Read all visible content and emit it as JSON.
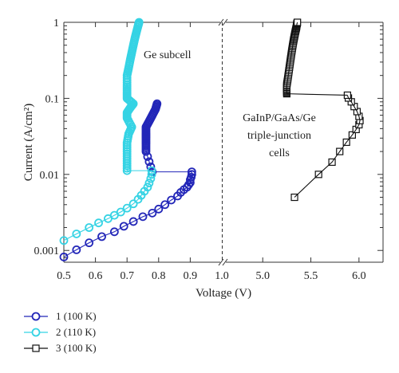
{
  "chart_data": {
    "type": "scatter",
    "ylabel": "Current (A/cm²)",
    "xlabel": "Voltage (V)",
    "y_scale": "log",
    "ylim": [
      0.0007,
      1
    ],
    "y_ticks": [
      "0.001",
      "0.01",
      "0.1",
      "1"
    ],
    "grid": false,
    "legend_position": "bottom-left",
    "panels": [
      {
        "xlim": [
          0.5,
          1.0
        ],
        "x_ticks": [
          "0.5",
          "0.6",
          "0.7",
          "0.8",
          "0.9",
          "1.0"
        ],
        "annotation": "Ge subcell"
      },
      {
        "xlim": [
          4.6,
          6.25
        ],
        "x_ticks": [
          "5.0",
          "5.5",
          "6.0"
        ],
        "annotation": [
          "GaInP/GaAs/Ge",
          "triple-junction",
          "cells"
        ]
      }
    ],
    "series": [
      {
        "name": "1 (100 K)",
        "panel": 0,
        "color": "#2226b8",
        "marker": "circle-open",
        "points": [
          [
            0.5,
            0.00082
          ],
          [
            0.54,
            0.00102
          ],
          [
            0.58,
            0.00126
          ],
          [
            0.62,
            0.00152
          ],
          [
            0.66,
            0.00176
          ],
          [
            0.69,
            0.00208
          ],
          [
            0.72,
            0.0024
          ],
          [
            0.75,
            0.00278
          ],
          [
            0.78,
            0.0031
          ],
          [
            0.8,
            0.0035
          ],
          [
            0.82,
            0.004
          ],
          [
            0.84,
            0.0046
          ],
          [
            0.86,
            0.0052
          ],
          [
            0.87,
            0.0058
          ],
          [
            0.88,
            0.0063
          ],
          [
            0.89,
            0.0068
          ],
          [
            0.895,
            0.0073
          ],
          [
            0.9,
            0.0078
          ],
          [
            0.9,
            0.0085
          ],
          [
            0.903,
            0.0092
          ],
          [
            0.905,
            0.01
          ],
          [
            0.905,
            0.0108
          ]
        ],
        "branch": {
          "start": [
            0.78,
            0.0108
          ],
          "upper": [
            [
              0.76,
              0.02
            ],
            [
              0.76,
              0.025
            ],
            [
              0.76,
              0.03
            ],
            [
              0.76,
              0.035
            ],
            [
              0.76,
              0.042
            ],
            [
              0.77,
              0.05
            ],
            [
              0.78,
              0.06
            ],
            [
              0.79,
              0.072
            ],
            [
              0.795,
              0.085
            ]
          ]
        }
      },
      {
        "name": "2 (110 K)",
        "panel": 0,
        "color": "#35d3e4",
        "marker": "circle-open",
        "points": [
          [
            0.5,
            0.00135
          ],
          [
            0.54,
            0.00165
          ],
          [
            0.58,
            0.002
          ],
          [
            0.61,
            0.0023
          ],
          [
            0.64,
            0.00262
          ],
          [
            0.66,
            0.0029
          ],
          [
            0.68,
            0.0032
          ],
          [
            0.7,
            0.0036
          ],
          [
            0.72,
            0.0041
          ],
          [
            0.735,
            0.0047
          ],
          [
            0.745,
            0.0053
          ],
          [
            0.755,
            0.006
          ],
          [
            0.765,
            0.0068
          ],
          [
            0.77,
            0.0077
          ],
          [
            0.775,
            0.0088
          ],
          [
            0.778,
            0.01
          ],
          [
            0.778,
            0.0112
          ]
        ],
        "branch": {
          "start": [
            0.7,
            0.0112
          ],
          "upper": [
            [
              0.7,
              0.015
            ],
            [
              0.7,
              0.02
            ],
            [
              0.7,
              0.026
            ],
            [
              0.705,
              0.034
            ],
            [
              0.715,
              0.042
            ],
            [
              0.7,
              0.055
            ],
            [
              0.7,
              0.065
            ],
            [
              0.71,
              0.075
            ],
            [
              0.72,
              0.085
            ],
            [
              0.7,
              0.1
            ],
            [
              0.7,
              0.12
            ],
            [
              0.7,
              0.15
            ],
            [
              0.7,
              0.2
            ],
            [
              0.705,
              0.25
            ],
            [
              0.71,
              0.32
            ],
            [
              0.715,
              0.4
            ],
            [
              0.72,
              0.5
            ],
            [
              0.725,
              0.62
            ],
            [
              0.73,
              0.75
            ],
            [
              0.735,
              0.9
            ],
            [
              0.738,
              1.0
            ]
          ]
        }
      },
      {
        "name": "3 (100 K)",
        "panel": 1,
        "color": "#111111",
        "marker": "square-open",
        "points": [
          [
            5.33,
            0.005
          ],
          [
            5.58,
            0.01
          ],
          [
            5.72,
            0.0145
          ],
          [
            5.8,
            0.02
          ],
          [
            5.87,
            0.0265
          ],
          [
            5.93,
            0.033
          ],
          [
            5.97,
            0.039
          ],
          [
            6.0,
            0.045
          ],
          [
            6.01,
            0.051
          ],
          [
            6.0,
            0.058
          ],
          [
            5.98,
            0.067
          ],
          [
            5.95,
            0.078
          ],
          [
            5.92,
            0.09
          ],
          [
            5.89,
            0.101
          ],
          [
            5.88,
            0.11
          ]
        ],
        "branch": {
          "start": [
            5.25,
            0.115
          ],
          "upper": [
            [
              5.25,
              0.13
            ],
            [
              5.25,
              0.15
            ],
            [
              5.26,
              0.18
            ],
            [
              5.27,
              0.22
            ],
            [
              5.28,
              0.27
            ],
            [
              5.29,
              0.33
            ],
            [
              5.3,
              0.4
            ],
            [
              5.31,
              0.48
            ],
            [
              5.32,
              0.57
            ],
            [
              5.33,
              0.66
            ],
            [
              5.34,
              0.76
            ],
            [
              5.35,
              0.86
            ],
            [
              5.355,
              0.95
            ],
            [
              5.36,
              1.0
            ]
          ]
        }
      }
    ]
  }
}
